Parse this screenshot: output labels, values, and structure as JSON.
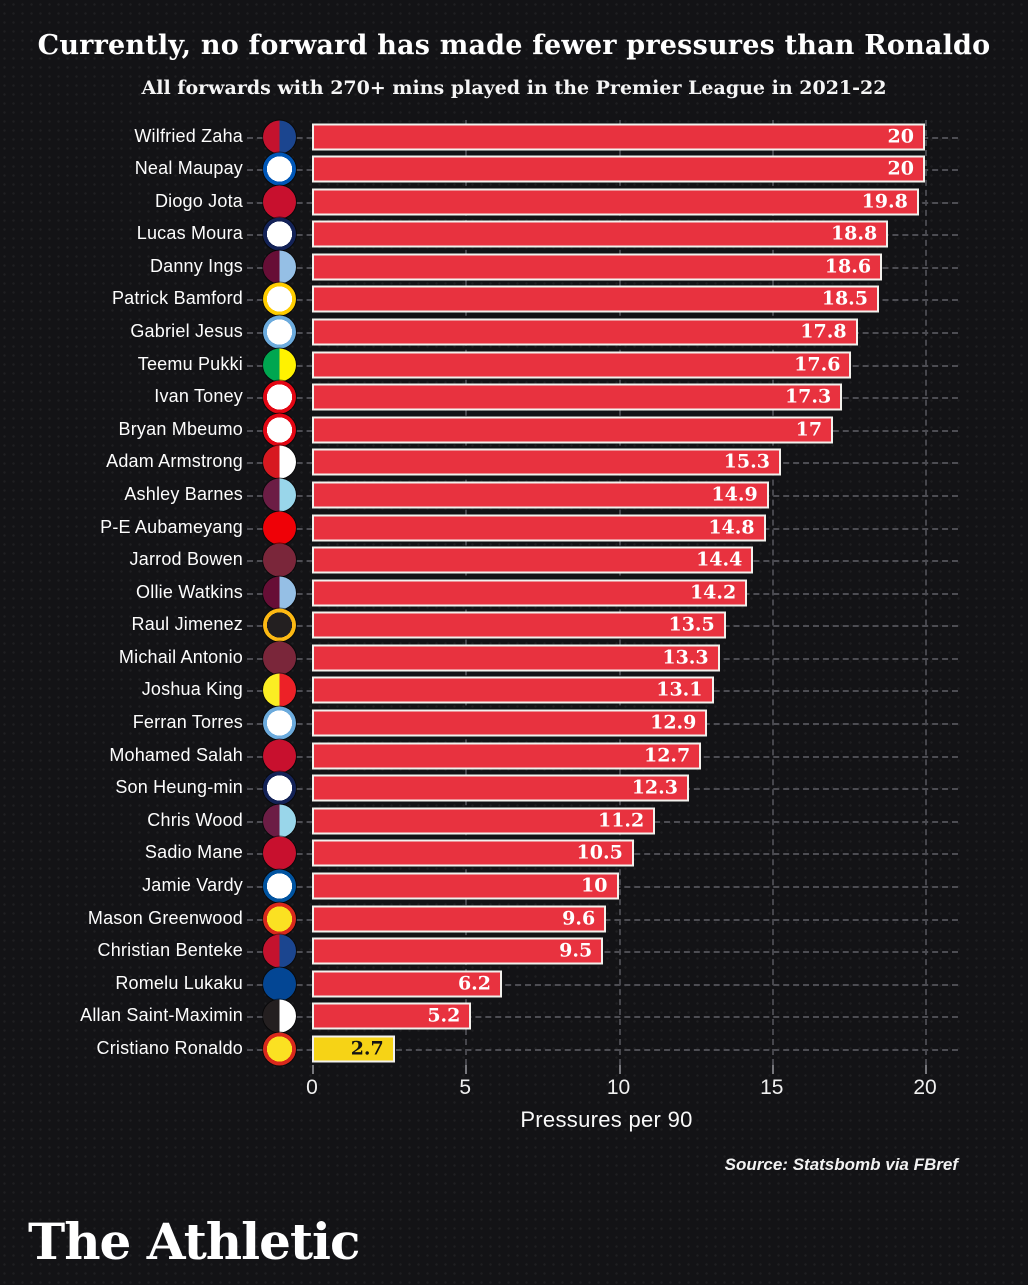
{
  "header": {
    "title": "Currently, no forward has made fewer pressures than Ronaldo",
    "subtitle": "All forwards with 270+ mins played in the Premier League in 2021-22"
  },
  "chart_data": {
    "type": "bar",
    "orientation": "horizontal",
    "xlabel": "Pressures per 90",
    "xlim": [
      0,
      20
    ],
    "x_ticks": [
      0,
      5,
      10,
      15,
      20
    ],
    "grid": "dashed",
    "bar_color": "#e8323f",
    "highlight_color": "#f6d316",
    "bar_border_color": "#f2f0ec",
    "players": [
      {
        "name": "Wilfried Zaha",
        "club": "Crystal Palace",
        "value": 20,
        "highlight": false
      },
      {
        "name": "Neal Maupay",
        "club": "Brighton & Hove Albion",
        "value": 20,
        "highlight": false
      },
      {
        "name": "Diogo Jota",
        "club": "Liverpool",
        "value": 19.8,
        "highlight": false
      },
      {
        "name": "Lucas Moura",
        "club": "Tottenham Hotspur",
        "value": 18.8,
        "highlight": false
      },
      {
        "name": "Danny Ings",
        "club": "Aston Villa",
        "value": 18.6,
        "highlight": false
      },
      {
        "name": "Patrick Bamford",
        "club": "Leeds United",
        "value": 18.5,
        "highlight": false
      },
      {
        "name": "Gabriel Jesus",
        "club": "Manchester City",
        "value": 17.8,
        "highlight": false
      },
      {
        "name": "Teemu Pukki",
        "club": "Norwich City",
        "value": 17.6,
        "highlight": false
      },
      {
        "name": "Ivan Toney",
        "club": "Brentford",
        "value": 17.3,
        "highlight": false
      },
      {
        "name": "Bryan Mbeumo",
        "club": "Brentford",
        "value": 17,
        "highlight": false
      },
      {
        "name": "Adam Armstrong",
        "club": "Southampton",
        "value": 15.3,
        "highlight": false
      },
      {
        "name": "Ashley Barnes",
        "club": "Burnley",
        "value": 14.9,
        "highlight": false
      },
      {
        "name": "P-E Aubameyang",
        "club": "Arsenal",
        "value": 14.8,
        "highlight": false
      },
      {
        "name": "Jarrod Bowen",
        "club": "West Ham United",
        "value": 14.4,
        "highlight": false
      },
      {
        "name": "Ollie Watkins",
        "club": "Aston Villa",
        "value": 14.2,
        "highlight": false
      },
      {
        "name": "Raul Jimenez",
        "club": "Wolverhampton Wanderers",
        "value": 13.5,
        "highlight": false
      },
      {
        "name": "Michail Antonio",
        "club": "West Ham United",
        "value": 13.3,
        "highlight": false
      },
      {
        "name": "Joshua King",
        "club": "Watford",
        "value": 13.1,
        "highlight": false
      },
      {
        "name": "Ferran Torres",
        "club": "Manchester City",
        "value": 12.9,
        "highlight": false
      },
      {
        "name": "Mohamed Salah",
        "club": "Liverpool",
        "value": 12.7,
        "highlight": false
      },
      {
        "name": "Son Heung-min",
        "club": "Tottenham Hotspur",
        "value": 12.3,
        "highlight": false
      },
      {
        "name": "Chris Wood",
        "club": "Burnley",
        "value": 11.2,
        "highlight": false
      },
      {
        "name": "Sadio Mane",
        "club": "Liverpool",
        "value": 10.5,
        "highlight": false
      },
      {
        "name": "Jamie Vardy",
        "club": "Leicester City",
        "value": 10,
        "highlight": false
      },
      {
        "name": "Mason Greenwood",
        "club": "Manchester United",
        "value": 9.6,
        "highlight": false
      },
      {
        "name": "Christian Benteke",
        "club": "Crystal Palace",
        "value": 9.5,
        "highlight": false
      },
      {
        "name": "Romelu Lukaku",
        "club": "Chelsea",
        "value": 6.2,
        "highlight": false
      },
      {
        "name": "Allan Saint-Maximin",
        "club": "Newcastle United",
        "value": 5.2,
        "highlight": false
      },
      {
        "name": "Cristiano Ronaldo",
        "club": "Manchester United",
        "value": 2.7,
        "highlight": true
      }
    ]
  },
  "clubs": {
    "Crystal Palace": {
      "style": "half",
      "c1": "#c4122e",
      "c2": "#1b458f"
    },
    "Brighton & Hove Albion": {
      "style": "ring",
      "c1": "#0057b8",
      "c2": "#ffffff"
    },
    "Liverpool": {
      "style": "solid",
      "c1": "#c8102e",
      "c2": "#f1f1f1"
    },
    "Tottenham Hotspur": {
      "style": "ring",
      "c1": "#132257",
      "c2": "#ffffff"
    },
    "Aston Villa": {
      "style": "half",
      "c1": "#670e36",
      "c2": "#95bfe5"
    },
    "Leeds United": {
      "style": "ring",
      "c1": "#ffcd00",
      "c2": "#ffffff"
    },
    "Manchester City": {
      "style": "ring",
      "c1": "#6cabdd",
      "c2": "#ffffff"
    },
    "Norwich City": {
      "style": "half",
      "c1": "#00a650",
      "c2": "#fff200"
    },
    "Brentford": {
      "style": "ring",
      "c1": "#e30613",
      "c2": "#ffffff"
    },
    "Southampton": {
      "style": "half",
      "c1": "#d71920",
      "c2": "#ffffff"
    },
    "Burnley": {
      "style": "half",
      "c1": "#6c1d45",
      "c2": "#99d6ea"
    },
    "Arsenal": {
      "style": "solid",
      "c1": "#ef0107",
      "c2": "#ffffff"
    },
    "West Ham United": {
      "style": "solid",
      "c1": "#7a263a",
      "c2": "#2dafe5"
    },
    "Wolverhampton Wanderers": {
      "style": "ring",
      "c1": "#fdb913",
      "c2": "#231f20"
    },
    "Watford": {
      "style": "half",
      "c1": "#fbee23",
      "c2": "#ed2127"
    },
    "Leicester City": {
      "style": "ring",
      "c1": "#0053a0",
      "c2": "#ffffff"
    },
    "Manchester United": {
      "style": "ring",
      "c1": "#da291c",
      "c2": "#fbe122"
    },
    "Chelsea": {
      "style": "solid",
      "c1": "#034694",
      "c2": "#ffffff"
    },
    "Newcastle United": {
      "style": "half",
      "c1": "#241f20",
      "c2": "#ffffff"
    }
  },
  "footer": {
    "source": "Source: Statsbomb via FBref",
    "logo": "The Athletic"
  }
}
